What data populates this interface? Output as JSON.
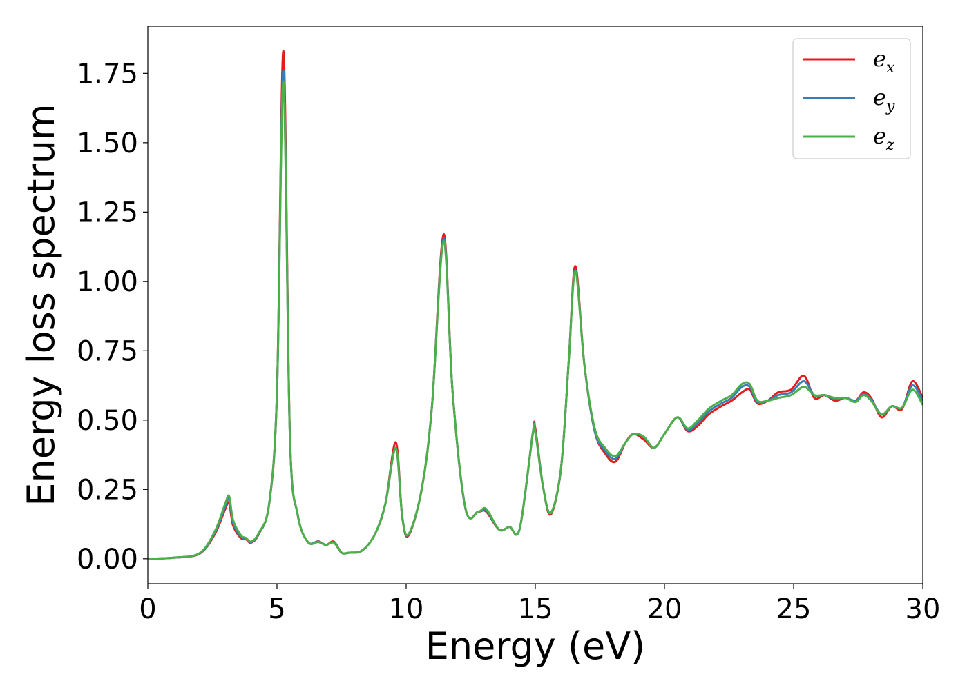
{
  "chart_data": {
    "type": "line",
    "title": "",
    "xlabel": "Energy (eV)",
    "ylabel": "Energy loss spectrum",
    "xlim": [
      0,
      30
    ],
    "ylim": [
      -0.09,
      1.92
    ],
    "xticks": [
      0,
      5,
      10,
      15,
      20,
      25,
      30
    ],
    "xtick_labels": [
      "0",
      "5",
      "10",
      "15",
      "20",
      "25",
      "30"
    ],
    "yticks": [
      0.0,
      0.25,
      0.5,
      0.75,
      1.0,
      1.25,
      1.5,
      1.75
    ],
    "ytick_labels": [
      "0.00",
      "0.25",
      "0.50",
      "0.75",
      "1.00",
      "1.25",
      "1.50",
      "1.75"
    ],
    "grid": false,
    "legend_position": "top-right",
    "series": [
      {
        "name": "e_x",
        "label_base": "e",
        "label_sub": "x",
        "color": "#e41a1c",
        "x": [
          0,
          1,
          2,
          2.6,
          3.0,
          3.15,
          3.3,
          3.6,
          3.8,
          4.0,
          4.3,
          4.7,
          5.0,
          5.25,
          5.5,
          5.8,
          6.2,
          6.6,
          6.9,
          7.2,
          7.5,
          7.8,
          8.3,
          8.8,
          9.2,
          9.6,
          9.85,
          10.1,
          10.6,
          11.0,
          11.45,
          11.8,
          12.3,
          12.8,
          13.1,
          13.6,
          14.0,
          14.4,
          14.9,
          15.0,
          15.3,
          15.6,
          16.0,
          16.3,
          16.55,
          16.9,
          17.3,
          17.7,
          18.1,
          18.5,
          18.8,
          19.2,
          19.6,
          20.0,
          20.5,
          20.9,
          21.3,
          21.7,
          22.2,
          22.6,
          23.0,
          23.3,
          23.6,
          24.0,
          24.4,
          24.9,
          25.4,
          25.8,
          26.2,
          26.6,
          27.0,
          27.4,
          27.7,
          28.0,
          28.4,
          28.8,
          29.2,
          29.6,
          30.0
        ],
        "y": [
          0.0,
          0.004,
          0.018,
          0.09,
          0.18,
          0.2,
          0.12,
          0.075,
          0.07,
          0.058,
          0.09,
          0.2,
          0.6,
          1.83,
          0.45,
          0.16,
          0.06,
          0.063,
          0.05,
          0.062,
          0.022,
          0.022,
          0.03,
          0.09,
          0.2,
          0.42,
          0.15,
          0.085,
          0.25,
          0.55,
          1.17,
          0.6,
          0.18,
          0.17,
          0.17,
          0.105,
          0.115,
          0.11,
          0.45,
          0.47,
          0.26,
          0.16,
          0.33,
          0.72,
          1.055,
          0.7,
          0.46,
          0.38,
          0.35,
          0.42,
          0.45,
          0.43,
          0.4,
          0.45,
          0.51,
          0.46,
          0.48,
          0.52,
          0.55,
          0.57,
          0.6,
          0.61,
          0.56,
          0.57,
          0.6,
          0.61,
          0.66,
          0.58,
          0.59,
          0.57,
          0.58,
          0.57,
          0.6,
          0.58,
          0.51,
          0.55,
          0.54,
          0.64,
          0.58
        ]
      },
      {
        "name": "e_y",
        "label_base": "e",
        "label_sub": "y",
        "color": "#377eb8",
        "x": [
          0,
          1,
          2,
          2.6,
          3.0,
          3.15,
          3.3,
          3.6,
          3.8,
          4.0,
          4.3,
          4.7,
          5.0,
          5.25,
          5.5,
          5.8,
          6.2,
          6.6,
          6.9,
          7.2,
          7.5,
          7.8,
          8.3,
          8.8,
          9.2,
          9.6,
          9.85,
          10.1,
          10.6,
          11.0,
          11.45,
          11.8,
          12.3,
          12.8,
          13.1,
          13.6,
          14.0,
          14.4,
          14.9,
          15.0,
          15.3,
          15.6,
          16.0,
          16.3,
          16.55,
          16.9,
          17.3,
          17.7,
          18.1,
          18.5,
          18.8,
          19.2,
          19.6,
          20.0,
          20.5,
          20.9,
          21.3,
          21.7,
          22.2,
          22.6,
          23.0,
          23.3,
          23.6,
          24.0,
          24.4,
          24.9,
          25.4,
          25.8,
          26.2,
          26.6,
          27.0,
          27.4,
          27.7,
          28.0,
          28.4,
          28.8,
          29.2,
          29.6,
          30.0
        ],
        "y": [
          0.0,
          0.004,
          0.019,
          0.095,
          0.19,
          0.215,
          0.13,
          0.08,
          0.072,
          0.06,
          0.092,
          0.2,
          0.6,
          1.76,
          0.44,
          0.16,
          0.06,
          0.062,
          0.05,
          0.06,
          0.022,
          0.022,
          0.03,
          0.09,
          0.2,
          0.4,
          0.15,
          0.088,
          0.25,
          0.55,
          1.155,
          0.6,
          0.18,
          0.17,
          0.175,
          0.105,
          0.115,
          0.11,
          0.45,
          0.46,
          0.26,
          0.165,
          0.33,
          0.72,
          1.04,
          0.7,
          0.46,
          0.39,
          0.36,
          0.42,
          0.45,
          0.44,
          0.4,
          0.45,
          0.51,
          0.465,
          0.49,
          0.53,
          0.56,
          0.58,
          0.62,
          0.62,
          0.565,
          0.57,
          0.59,
          0.6,
          0.64,
          0.59,
          0.59,
          0.575,
          0.58,
          0.57,
          0.595,
          0.575,
          0.52,
          0.55,
          0.545,
          0.625,
          0.57
        ]
      },
      {
        "name": "e_z",
        "label_base": "e",
        "label_sub": "z",
        "color": "#4daf4a",
        "x": [
          0,
          1,
          2,
          2.6,
          3.0,
          3.15,
          3.3,
          3.6,
          3.8,
          4.0,
          4.3,
          4.7,
          5.0,
          5.25,
          5.5,
          5.8,
          6.2,
          6.6,
          6.9,
          7.2,
          7.5,
          7.8,
          8.3,
          8.8,
          9.2,
          9.6,
          9.85,
          10.1,
          10.6,
          11.0,
          11.45,
          11.8,
          12.3,
          12.8,
          13.1,
          13.6,
          14.0,
          14.4,
          14.9,
          15.0,
          15.3,
          15.6,
          16.0,
          16.3,
          16.55,
          16.9,
          17.3,
          17.7,
          18.1,
          18.5,
          18.8,
          19.2,
          19.6,
          20.0,
          20.5,
          20.9,
          21.3,
          21.7,
          22.2,
          22.6,
          23.0,
          23.3,
          23.6,
          24.0,
          24.4,
          24.9,
          25.4,
          25.8,
          26.2,
          26.6,
          27.0,
          27.4,
          27.7,
          28.0,
          28.4,
          28.8,
          29.2,
          29.6,
          30.0
        ],
        "y": [
          0.0,
          0.004,
          0.02,
          0.1,
          0.2,
          0.225,
          0.14,
          0.085,
          0.075,
          0.062,
          0.094,
          0.2,
          0.6,
          1.72,
          0.44,
          0.16,
          0.06,
          0.06,
          0.05,
          0.058,
          0.022,
          0.022,
          0.03,
          0.09,
          0.2,
          0.4,
          0.15,
          0.09,
          0.25,
          0.55,
          1.145,
          0.6,
          0.18,
          0.17,
          0.18,
          0.105,
          0.115,
          0.11,
          0.45,
          0.455,
          0.26,
          0.165,
          0.33,
          0.72,
          1.035,
          0.7,
          0.47,
          0.4,
          0.37,
          0.42,
          0.45,
          0.44,
          0.4,
          0.45,
          0.51,
          0.47,
          0.5,
          0.54,
          0.57,
          0.59,
          0.63,
          0.63,
          0.57,
          0.57,
          0.58,
          0.59,
          0.62,
          0.59,
          0.59,
          0.58,
          0.58,
          0.565,
          0.59,
          0.57,
          0.52,
          0.55,
          0.545,
          0.61,
          0.555
        ]
      }
    ]
  }
}
